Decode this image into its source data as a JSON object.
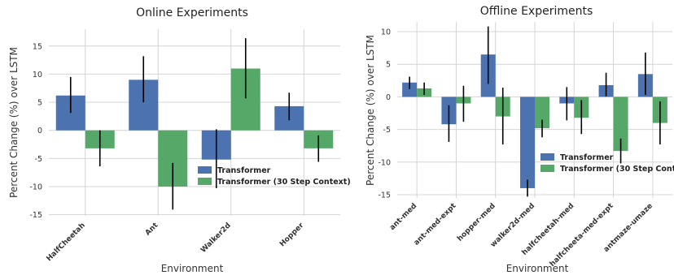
{
  "colors": {
    "transformer": "#4c72b0",
    "transformer30": "#55a868",
    "error": "#000000"
  },
  "chart_data": [
    {
      "type": "bar",
      "title": "Online Experiments",
      "xlabel": "Environment",
      "ylabel": "Percent Change (%) over LSTM",
      "ylim": [
        -15.2,
        18
      ],
      "yticks": [
        -15,
        -10,
        -5,
        0,
        5,
        10,
        15
      ],
      "grid": true,
      "legend_position": "lower-right",
      "categories": [
        "HalfCheetah",
        "Ant",
        "Walker2d",
        "Hopper"
      ],
      "series": [
        {
          "name": "Transformer",
          "values": [
            6.2,
            9.0,
            -5.2,
            4.3
          ],
          "error_low": [
            3.1,
            5.0,
            -10.3,
            1.8
          ],
          "error_high": [
            9.5,
            13.2,
            0.2,
            6.7
          ]
        },
        {
          "name": "Transformer (30 Step Context)",
          "values": [
            -3.2,
            -10.0,
            11.0,
            -3.2
          ],
          "error_low": [
            -6.4,
            -14.1,
            5.7,
            -5.6
          ],
          "error_high": [
            0.0,
            -5.8,
            16.4,
            -0.9
          ]
        }
      ]
    },
    {
      "type": "bar",
      "title": "Offline Experiments",
      "xlabel": "Environment",
      "ylabel": "Percent Change (%) over LSTM",
      "ylim": [
        -15.5,
        11.5
      ],
      "yticks": [
        -15,
        -10,
        -5,
        0,
        5,
        10
      ],
      "grid": true,
      "legend_position": "lower-right",
      "categories": [
        "ant-med",
        "ant-med-expt",
        "hopper-med",
        "walker2d-med",
        "halfcheetah-med",
        "halfcheeta-med-expt",
        "antmaze-umaze"
      ],
      "series": [
        {
          "name": "Transformer",
          "values": [
            2.2,
            -4.2,
            6.5,
            -14.0,
            -1.0,
            1.8,
            3.5
          ],
          "error_low": [
            1.2,
            -6.9,
            2.0,
            -15.3,
            -3.6,
            0.1,
            0.3
          ],
          "error_high": [
            3.1,
            -1.3,
            10.8,
            -12.7,
            1.5,
            3.7,
            6.8
          ]
        },
        {
          "name": "Transformer (30 Step Context)",
          "values": [
            1.3,
            -1.0,
            -3.0,
            -4.8,
            -3.2,
            -8.3,
            -4.0
          ],
          "error_low": [
            0.3,
            -3.8,
            -7.3,
            -6.2,
            -5.7,
            -10.2,
            -7.3
          ],
          "error_high": [
            2.2,
            1.7,
            1.4,
            -3.5,
            -0.5,
            -6.4,
            -0.7
          ]
        }
      ]
    }
  ]
}
